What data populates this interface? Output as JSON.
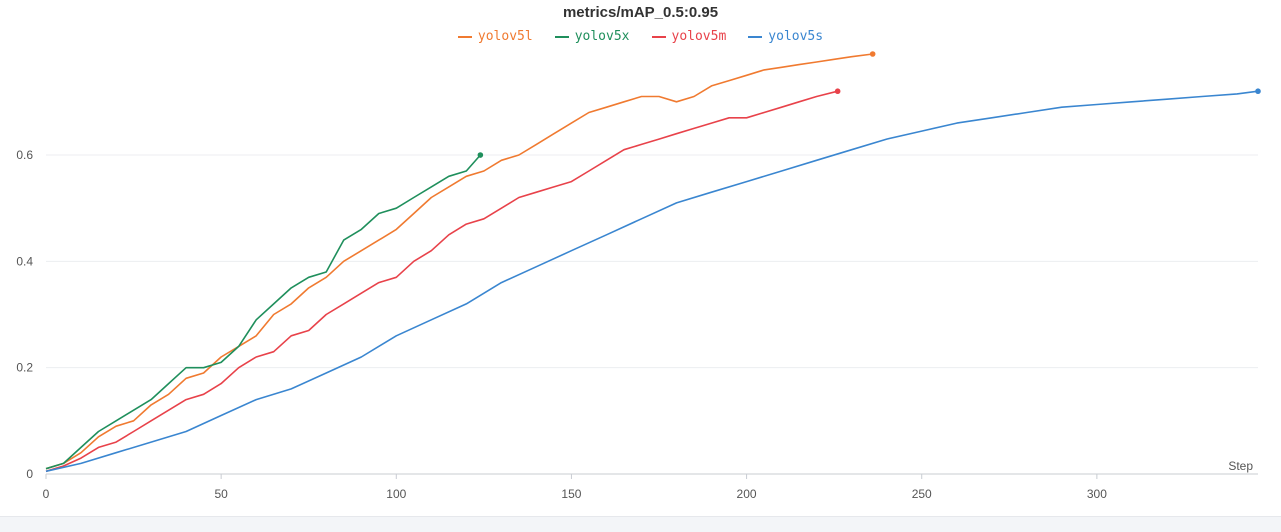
{
  "chart_data": {
    "type": "line",
    "title": "metrics/mAP_0.5:0.95",
    "xlabel": "Step",
    "ylabel": "",
    "xlim": [
      0,
      346
    ],
    "ylim": [
      0,
      0.79
    ],
    "x_ticks": [
      0,
      50,
      100,
      150,
      200,
      250,
      300
    ],
    "y_ticks": [
      0,
      0.2,
      0.4,
      0.6
    ],
    "x_tick_labels": [
      "0",
      "50",
      "100",
      "150",
      "200",
      "250",
      "300"
    ],
    "y_tick_labels": [
      "0",
      "0.2",
      "0.4",
      "0.6"
    ],
    "grid": true,
    "legend_position": "top-center",
    "series": [
      {
        "name": "yolov5l",
        "color": "#f07a30",
        "x": [
          0,
          5,
          10,
          15,
          20,
          25,
          30,
          35,
          40,
          45,
          50,
          55,
          60,
          65,
          70,
          75,
          80,
          85,
          90,
          95,
          100,
          105,
          110,
          115,
          120,
          125,
          130,
          135,
          140,
          145,
          150,
          155,
          160,
          165,
          170,
          175,
          180,
          185,
          190,
          195,
          200,
          205,
          210,
          215,
          220,
          225,
          230,
          236
        ],
        "y": [
          0.01,
          0.02,
          0.04,
          0.07,
          0.09,
          0.1,
          0.13,
          0.15,
          0.18,
          0.19,
          0.22,
          0.24,
          0.26,
          0.3,
          0.32,
          0.35,
          0.37,
          0.4,
          0.42,
          0.44,
          0.46,
          0.49,
          0.52,
          0.54,
          0.56,
          0.57,
          0.59,
          0.6,
          0.62,
          0.64,
          0.66,
          0.68,
          0.69,
          0.7,
          0.71,
          0.71,
          0.7,
          0.71,
          0.73,
          0.74,
          0.75,
          0.76,
          0.765,
          0.77,
          0.775,
          0.78,
          0.785,
          0.79
        ]
      },
      {
        "name": "yolov5x",
        "color": "#1f8f5c",
        "x": [
          0,
          5,
          10,
          15,
          20,
          25,
          30,
          35,
          40,
          45,
          50,
          55,
          60,
          65,
          70,
          75,
          80,
          85,
          90,
          95,
          100,
          105,
          110,
          115,
          120,
          124
        ],
        "y": [
          0.01,
          0.02,
          0.05,
          0.08,
          0.1,
          0.12,
          0.14,
          0.17,
          0.2,
          0.2,
          0.21,
          0.24,
          0.29,
          0.32,
          0.35,
          0.37,
          0.38,
          0.44,
          0.46,
          0.49,
          0.5,
          0.52,
          0.54,
          0.56,
          0.57,
          0.6
        ]
      },
      {
        "name": "yolov5m",
        "color": "#e8424a",
        "x": [
          0,
          5,
          10,
          15,
          20,
          25,
          30,
          35,
          40,
          45,
          50,
          55,
          60,
          65,
          70,
          75,
          80,
          85,
          90,
          95,
          100,
          105,
          110,
          115,
          120,
          125,
          130,
          135,
          140,
          145,
          150,
          155,
          160,
          165,
          170,
          175,
          180,
          185,
          190,
          195,
          200,
          205,
          210,
          215,
          220,
          226
        ],
        "y": [
          0.005,
          0.015,
          0.03,
          0.05,
          0.06,
          0.08,
          0.1,
          0.12,
          0.14,
          0.15,
          0.17,
          0.2,
          0.22,
          0.23,
          0.26,
          0.27,
          0.3,
          0.32,
          0.34,
          0.36,
          0.37,
          0.4,
          0.42,
          0.45,
          0.47,
          0.48,
          0.5,
          0.52,
          0.53,
          0.54,
          0.55,
          0.57,
          0.59,
          0.61,
          0.62,
          0.63,
          0.64,
          0.65,
          0.66,
          0.67,
          0.67,
          0.68,
          0.69,
          0.7,
          0.71,
          0.72
        ]
      },
      {
        "name": "yolov5s",
        "color": "#3a86d0",
        "x": [
          0,
          10,
          20,
          30,
          40,
          50,
          60,
          70,
          80,
          90,
          100,
          110,
          120,
          130,
          140,
          150,
          160,
          170,
          180,
          190,
          200,
          210,
          220,
          230,
          240,
          250,
          260,
          270,
          280,
          290,
          300,
          310,
          320,
          330,
          340,
          346
        ],
        "y": [
          0.005,
          0.02,
          0.04,
          0.06,
          0.08,
          0.11,
          0.14,
          0.16,
          0.19,
          0.22,
          0.26,
          0.29,
          0.32,
          0.36,
          0.39,
          0.42,
          0.45,
          0.48,
          0.51,
          0.53,
          0.55,
          0.57,
          0.59,
          0.61,
          0.63,
          0.645,
          0.66,
          0.67,
          0.68,
          0.69,
          0.695,
          0.7,
          0.705,
          0.71,
          0.715,
          0.72
        ]
      }
    ]
  }
}
